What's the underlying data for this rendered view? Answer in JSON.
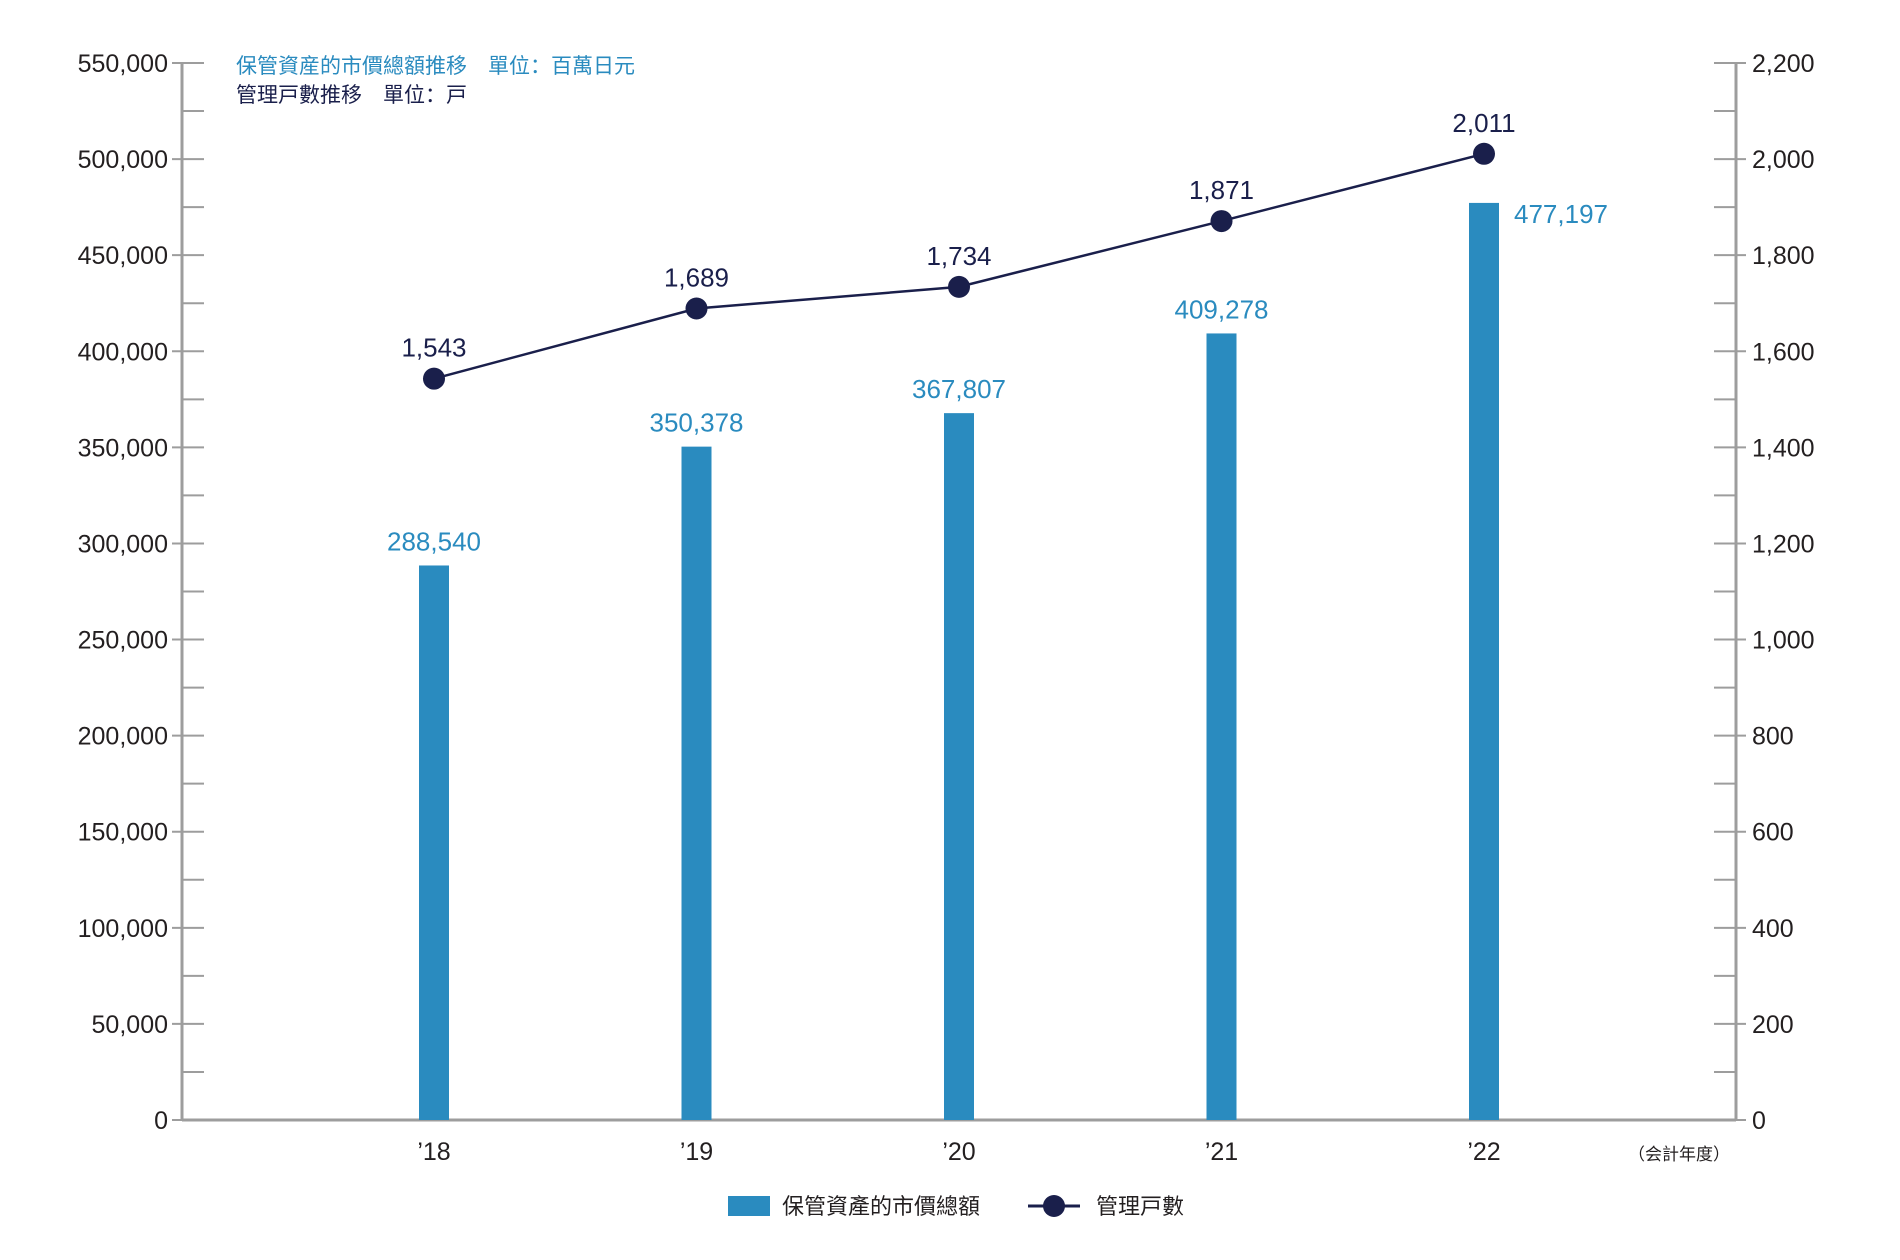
{
  "colors": {
    "bar": "#2a8bbf",
    "line": "#1a1f4b",
    "axis": "#9d9d9d",
    "text": "#231f20"
  },
  "title_lines": {
    "bar_series_title": "保管資産的市價總額推移　單位：百萬日元",
    "line_series_title": "管理戸數推移　單位：戸"
  },
  "fiscal_year_note": "（会計年度）",
  "chart_data": {
    "type": "bar",
    "categories": [
      "’18",
      "’19",
      "’20",
      "’21",
      "’22"
    ],
    "series": [
      {
        "name": "保管資產的市價總額",
        "type": "bar",
        "axis": "left",
        "values": [
          288540,
          350378,
          367807,
          409278,
          477197
        ],
        "labels": [
          "288,540",
          "350,378",
          "367,807",
          "409,278",
          "477,197"
        ]
      },
      {
        "name": "管理戸數",
        "type": "line",
        "axis": "right",
        "values": [
          1543,
          1689,
          1734,
          1871,
          2011
        ],
        "labels": [
          "1,543",
          "1,689",
          "1,734",
          "1,871",
          "2,011"
        ]
      }
    ],
    "y_left": {
      "ylim": [
        0,
        550000
      ],
      "ticks": [
        "0",
        "50,000",
        "100,000",
        "150,000",
        "200,000",
        "250,000",
        "300,000",
        "350,000",
        "400,000",
        "450,000",
        "500,000",
        "550,000"
      ]
    },
    "y_right": {
      "ylim": [
        0,
        2200
      ],
      "ticks": [
        "0",
        "200",
        "400",
        "600",
        "800",
        "1,000",
        "1,200",
        "1,400",
        "1,600",
        "1,800",
        "2,000",
        "2,200"
      ]
    },
    "legend_position": "bottom-center",
    "grid": false
  }
}
